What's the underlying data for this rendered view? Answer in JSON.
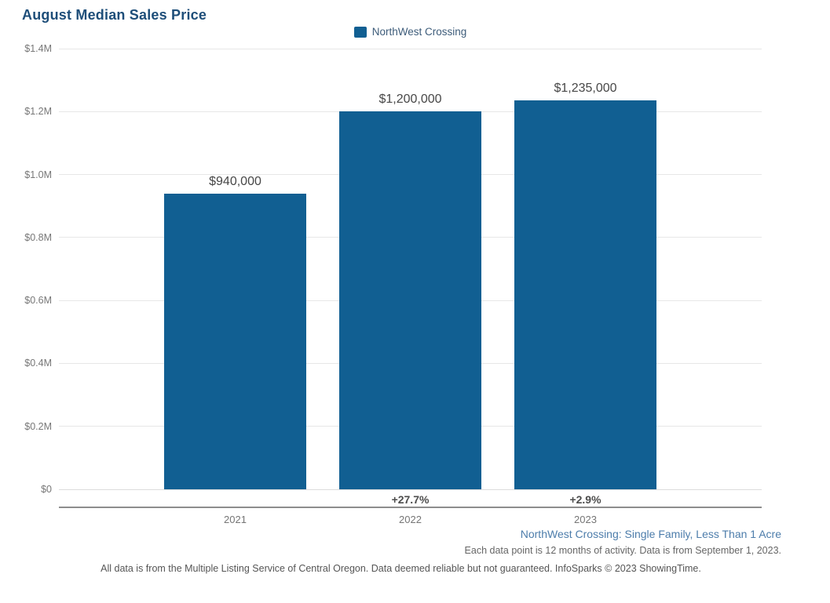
{
  "page": {
    "title": "August Median Sales Price"
  },
  "legend": {
    "label": "NorthWest Crossing",
    "swatch_color": "#115f92"
  },
  "footnotes": {
    "series": "NorthWest Crossing: Single Family, Less Than 1 Acre",
    "period": "Each data point is 12 months of activity. Data is from September 1, 2023.",
    "disclaimer": "All data is from the Multiple Listing Service of Central Oregon. Data deemed reliable but not guaranteed. InfoSparks © 2023 ShowingTime."
  },
  "chart_data": {
    "type": "bar",
    "title": "August Median Sales Price",
    "categories": [
      "2021",
      "2022",
      "2023"
    ],
    "series": [
      {
        "name": "NorthWest Crossing",
        "values": [
          940000,
          1200000,
          1235000
        ]
      }
    ],
    "value_labels": [
      "$940,000",
      "$1,200,000",
      "$1,235,000"
    ],
    "pct_change_labels": [
      null,
      "+27.7%",
      "+2.9%"
    ],
    "xlabel": "",
    "ylabel": "",
    "ylim": [
      0,
      1400000
    ],
    "y_ticks": [
      {
        "value": 0,
        "label": "$0"
      },
      {
        "value": 200000,
        "label": "$0.2M"
      },
      {
        "value": 400000,
        "label": "$0.4M"
      },
      {
        "value": 600000,
        "label": "$0.6M"
      },
      {
        "value": 800000,
        "label": "$0.8M"
      },
      {
        "value": 1000000,
        "label": "$1.0M"
      },
      {
        "value": 1200000,
        "label": "$1.2M"
      },
      {
        "value": 1400000,
        "label": "$1.4M"
      }
    ],
    "grid": true,
    "legend_position": "top-center",
    "bar_color": "#115f92"
  }
}
